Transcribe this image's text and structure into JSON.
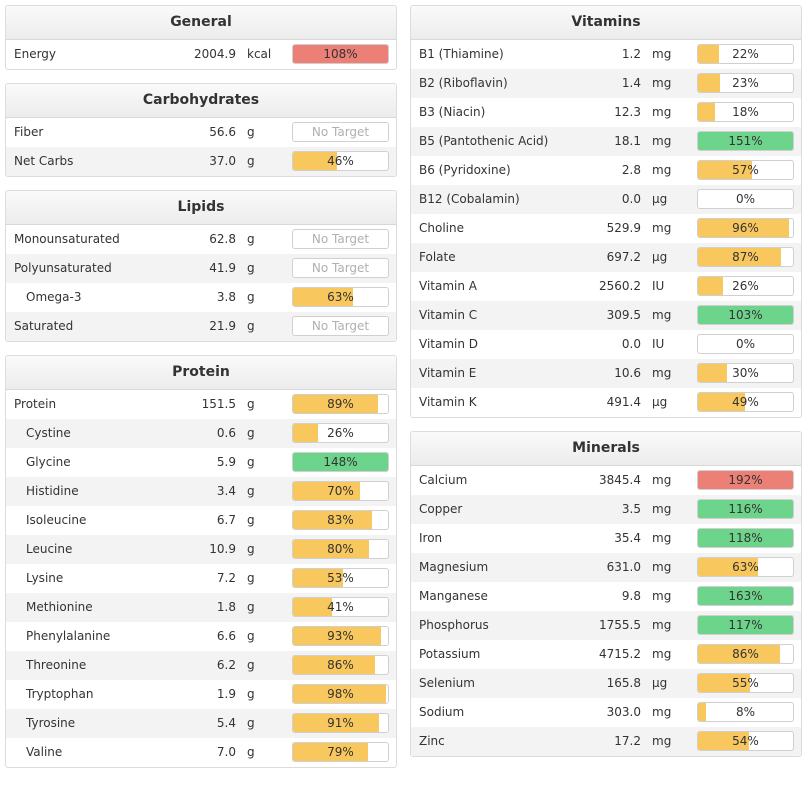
{
  "colors": {
    "yellow": "#f8c75d",
    "green": "#6dd48b",
    "red": "#ec7f76"
  },
  "left_panels": [
    {
      "id": "general",
      "title": "General",
      "rows": [
        {
          "name": "Energy",
          "amount": "2004.9",
          "unit": "kcal",
          "pct": 108,
          "label": "108%",
          "color": "red",
          "indent": false
        }
      ]
    },
    {
      "id": "carbohydrates",
      "title": "Carbohydrates",
      "rows": [
        {
          "name": "Fiber",
          "amount": "56.6",
          "unit": "g",
          "pct": 0,
          "label": "No Target",
          "color": "none",
          "indent": false
        },
        {
          "name": "Net Carbs",
          "amount": "37.0",
          "unit": "g",
          "pct": 46,
          "label": "46%",
          "color": "yellow",
          "indent": false
        }
      ]
    },
    {
      "id": "lipids",
      "title": "Lipids",
      "rows": [
        {
          "name": "Monounsaturated",
          "amount": "62.8",
          "unit": "g",
          "pct": 0,
          "label": "No Target",
          "color": "none",
          "indent": false
        },
        {
          "name": "Polyunsaturated",
          "amount": "41.9",
          "unit": "g",
          "pct": 0,
          "label": "No Target",
          "color": "none",
          "indent": false
        },
        {
          "name": "Omega-3",
          "amount": "3.8",
          "unit": "g",
          "pct": 63,
          "label": "63%",
          "color": "yellow",
          "indent": true
        },
        {
          "name": "Saturated",
          "amount": "21.9",
          "unit": "g",
          "pct": 0,
          "label": "No Target",
          "color": "none",
          "indent": false
        }
      ]
    },
    {
      "id": "protein",
      "title": "Protein",
      "rows": [
        {
          "name": "Protein",
          "amount": "151.5",
          "unit": "g",
          "pct": 89,
          "label": "89%",
          "color": "yellow",
          "indent": false
        },
        {
          "name": "Cystine",
          "amount": "0.6",
          "unit": "g",
          "pct": 26,
          "label": "26%",
          "color": "yellow",
          "indent": true
        },
        {
          "name": "Glycine",
          "amount": "5.9",
          "unit": "g",
          "pct": 148,
          "label": "148%",
          "color": "green",
          "indent": true
        },
        {
          "name": "Histidine",
          "amount": "3.4",
          "unit": "g",
          "pct": 70,
          "label": "70%",
          "color": "yellow",
          "indent": true
        },
        {
          "name": "Isoleucine",
          "amount": "6.7",
          "unit": "g",
          "pct": 83,
          "label": "83%",
          "color": "yellow",
          "indent": true
        },
        {
          "name": "Leucine",
          "amount": "10.9",
          "unit": "g",
          "pct": 80,
          "label": "80%",
          "color": "yellow",
          "indent": true
        },
        {
          "name": "Lysine",
          "amount": "7.2",
          "unit": "g",
          "pct": 53,
          "label": "53%",
          "color": "yellow",
          "indent": true
        },
        {
          "name": "Methionine",
          "amount": "1.8",
          "unit": "g",
          "pct": 41,
          "label": "41%",
          "color": "yellow",
          "indent": true
        },
        {
          "name": "Phenylalanine",
          "amount": "6.6",
          "unit": "g",
          "pct": 93,
          "label": "93%",
          "color": "yellow",
          "indent": true
        },
        {
          "name": "Threonine",
          "amount": "6.2",
          "unit": "g",
          "pct": 86,
          "label": "86%",
          "color": "yellow",
          "indent": true
        },
        {
          "name": "Tryptophan",
          "amount": "1.9",
          "unit": "g",
          "pct": 98,
          "label": "98%",
          "color": "yellow",
          "indent": true
        },
        {
          "name": "Tyrosine",
          "amount": "5.4",
          "unit": "g",
          "pct": 91,
          "label": "91%",
          "color": "yellow",
          "indent": true
        },
        {
          "name": "Valine",
          "amount": "7.0",
          "unit": "g",
          "pct": 79,
          "label": "79%",
          "color": "yellow",
          "indent": true
        }
      ]
    }
  ],
  "right_panels": [
    {
      "id": "vitamins",
      "title": "Vitamins",
      "rows": [
        {
          "name": "B1 (Thiamine)",
          "amount": "1.2",
          "unit": "mg",
          "pct": 22,
          "label": "22%",
          "color": "yellow",
          "indent": false
        },
        {
          "name": "B2 (Riboflavin)",
          "amount": "1.4",
          "unit": "mg",
          "pct": 23,
          "label": "23%",
          "color": "yellow",
          "indent": false
        },
        {
          "name": "B3 (Niacin)",
          "amount": "12.3",
          "unit": "mg",
          "pct": 18,
          "label": "18%",
          "color": "yellow",
          "indent": false
        },
        {
          "name": "B5 (Pantothenic Acid)",
          "amount": "18.1",
          "unit": "mg",
          "pct": 151,
          "label": "151%",
          "color": "green",
          "indent": false
        },
        {
          "name": "B6 (Pyridoxine)",
          "amount": "2.8",
          "unit": "mg",
          "pct": 57,
          "label": "57%",
          "color": "yellow",
          "indent": false
        },
        {
          "name": "B12 (Cobalamin)",
          "amount": "0.0",
          "unit": "µg",
          "pct": 0,
          "label": "0%",
          "color": "yellow",
          "indent": false
        },
        {
          "name": "Choline",
          "amount": "529.9",
          "unit": "mg",
          "pct": 96,
          "label": "96%",
          "color": "yellow",
          "indent": false
        },
        {
          "name": "Folate",
          "amount": "697.2",
          "unit": "µg",
          "pct": 87,
          "label": "87%",
          "color": "yellow",
          "indent": false
        },
        {
          "name": "Vitamin A",
          "amount": "2560.2",
          "unit": "IU",
          "pct": 26,
          "label": "26%",
          "color": "yellow",
          "indent": false
        },
        {
          "name": "Vitamin C",
          "amount": "309.5",
          "unit": "mg",
          "pct": 103,
          "label": "103%",
          "color": "green",
          "indent": false
        },
        {
          "name": "Vitamin D",
          "amount": "0.0",
          "unit": "IU",
          "pct": 0,
          "label": "0%",
          "color": "yellow",
          "indent": false
        },
        {
          "name": "Vitamin E",
          "amount": "10.6",
          "unit": "mg",
          "pct": 30,
          "label": "30%",
          "color": "yellow",
          "indent": false
        },
        {
          "name": "Vitamin K",
          "amount": "491.4",
          "unit": "µg",
          "pct": 49,
          "label": "49%",
          "color": "yellow",
          "indent": false
        }
      ]
    },
    {
      "id": "minerals",
      "title": "Minerals",
      "rows": [
        {
          "name": "Calcium",
          "amount": "3845.4",
          "unit": "mg",
          "pct": 192,
          "label": "192%",
          "color": "red",
          "indent": false
        },
        {
          "name": "Copper",
          "amount": "3.5",
          "unit": "mg",
          "pct": 116,
          "label": "116%",
          "color": "green",
          "indent": false
        },
        {
          "name": "Iron",
          "amount": "35.4",
          "unit": "mg",
          "pct": 118,
          "label": "118%",
          "color": "green",
          "indent": false
        },
        {
          "name": "Magnesium",
          "amount": "631.0",
          "unit": "mg",
          "pct": 63,
          "label": "63%",
          "color": "yellow",
          "indent": false
        },
        {
          "name": "Manganese",
          "amount": "9.8",
          "unit": "mg",
          "pct": 163,
          "label": "163%",
          "color": "green",
          "indent": false
        },
        {
          "name": "Phosphorus",
          "amount": "1755.5",
          "unit": "mg",
          "pct": 117,
          "label": "117%",
          "color": "green",
          "indent": false
        },
        {
          "name": "Potassium",
          "amount": "4715.2",
          "unit": "mg",
          "pct": 86,
          "label": "86%",
          "color": "yellow",
          "indent": false
        },
        {
          "name": "Selenium",
          "amount": "165.8",
          "unit": "µg",
          "pct": 55,
          "label": "55%",
          "color": "yellow",
          "indent": false
        },
        {
          "name": "Sodium",
          "amount": "303.0",
          "unit": "mg",
          "pct": 8,
          "label": "8%",
          "color": "yellow",
          "indent": false
        },
        {
          "name": "Zinc",
          "amount": "17.2",
          "unit": "mg",
          "pct": 54,
          "label": "54%",
          "color": "yellow",
          "indent": false
        }
      ]
    }
  ]
}
